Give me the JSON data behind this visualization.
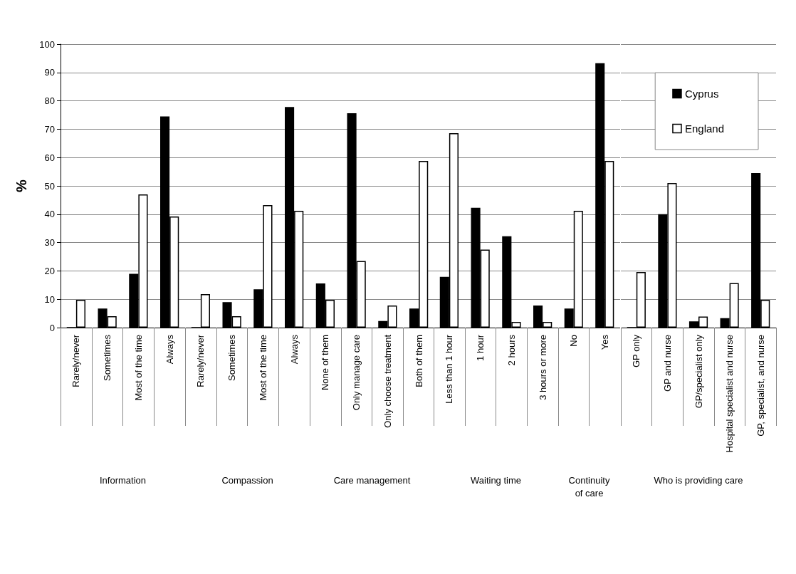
{
  "chart_data": [
    {
      "type": "bar",
      "xlabel": "Information",
      "ylabel": "%",
      "categories": [
        "Rarely/never",
        "Sometimes",
        "Most of the time",
        "Always"
      ],
      "series": [
        {
          "color": "#000000",
          "values": [
            0,
            6.7,
            19,
            74.5
          ]
        },
        {
          "color": "#ffffff",
          "values": [
            9.8,
            4,
            47,
            39.2
          ]
        }
      ],
      "ylim": [
        0,
        100
      ],
      "yticks": [
        0,
        10,
        20,
        30,
        40,
        50,
        60,
        70,
        80,
        90,
        100
      ],
      "grid": "y"
    },
    {
      "type": "bar",
      "xlabel": "Compassion",
      "categories": [
        "Rarely/never",
        "Sometimes",
        "Most of the time",
        "Always"
      ],
      "series": [
        {
          "color": "#000000",
          "values": [
            0,
            9,
            13.5,
            77.8
          ]
        },
        {
          "color": "#ffffff",
          "values": [
            11.8,
            4,
            43.2,
            41.2
          ]
        }
      ],
      "ylim": [
        0,
        100
      ],
      "yticks": [
        0,
        10,
        20,
        30,
        40,
        50,
        60,
        70,
        80,
        90,
        100
      ],
      "grid": "y",
      "tick_labels": "x"
    },
    {
      "type": "bar",
      "xlabel": "Care management",
      "categories": [
        "None of them",
        "Only manage care",
        "Only choose treatment",
        "Both of them"
      ],
      "series": [
        {
          "color": "#000000",
          "values": [
            15.6,
            75.6,
            2.3,
            6.7
          ]
        },
        {
          "color": "#ffffff",
          "values": [
            9.8,
            23.5,
            7.8,
            58.8
          ]
        }
      ],
      "ylim": [
        0,
        100
      ],
      "yticks": [
        0,
        10,
        20,
        30,
        40,
        50,
        60,
        70,
        80,
        90,
        100
      ],
      "grid": "y",
      "tick_labels": "x"
    },
    {
      "type": "bar",
      "xlabel": "Waiting time",
      "categories": [
        "Less than 1 hour",
        "1 hour",
        "2 hours",
        "3 hours or more"
      ],
      "series": [
        {
          "color": "#000000",
          "values": [
            17.9,
            42.3,
            32.2,
            7.8
          ]
        },
        {
          "color": "#ffffff",
          "values": [
            68.6,
            27.5,
            2,
            2
          ]
        }
      ],
      "ylim": [
        0,
        100
      ],
      "yticks": [
        0,
        10,
        20,
        30,
        40,
        50,
        60,
        70,
        80,
        90,
        100
      ],
      "grid": "y",
      "tick_labels": "x"
    },
    {
      "type": "bar",
      "xlabel": "Continuity of care",
      "categories": [
        "No",
        "Yes"
      ],
      "series": [
        {
          "color": "#000000",
          "values": [
            6.7,
            93.3
          ]
        },
        {
          "color": "#ffffff",
          "values": [
            41.2,
            58.8
          ]
        }
      ],
      "ylim": [
        0,
        100
      ],
      "yticks": [
        0,
        10,
        20,
        30,
        40,
        50,
        60,
        70,
        80,
        90,
        100
      ],
      "grid": "y",
      "tick_labels": "x"
    },
    {
      "type": "bar",
      "xlabel": "Who is providing care",
      "categories": [
        "GP only",
        "GP and nurse",
        "GP/specialist only",
        "Hospital specialist and nurse",
        "GP, specialist, and nurse"
      ],
      "series": [
        {
          "name": "Cyprus",
          "color": "#000000",
          "values": [
            0,
            40,
            2.2,
            3.3,
            54.5
          ]
        },
        {
          "name": "England",
          "color": "#ffffff",
          "values": [
            19.6,
            51,
            3.9,
            15.7,
            9.8
          ]
        }
      ],
      "ylim": [
        0,
        100
      ],
      "yticks": [
        0,
        10,
        20,
        30,
        40,
        50,
        60,
        70,
        80,
        90,
        100
      ],
      "grid": "y",
      "tick_labels": "x",
      "legend": "top right"
    }
  ]
}
